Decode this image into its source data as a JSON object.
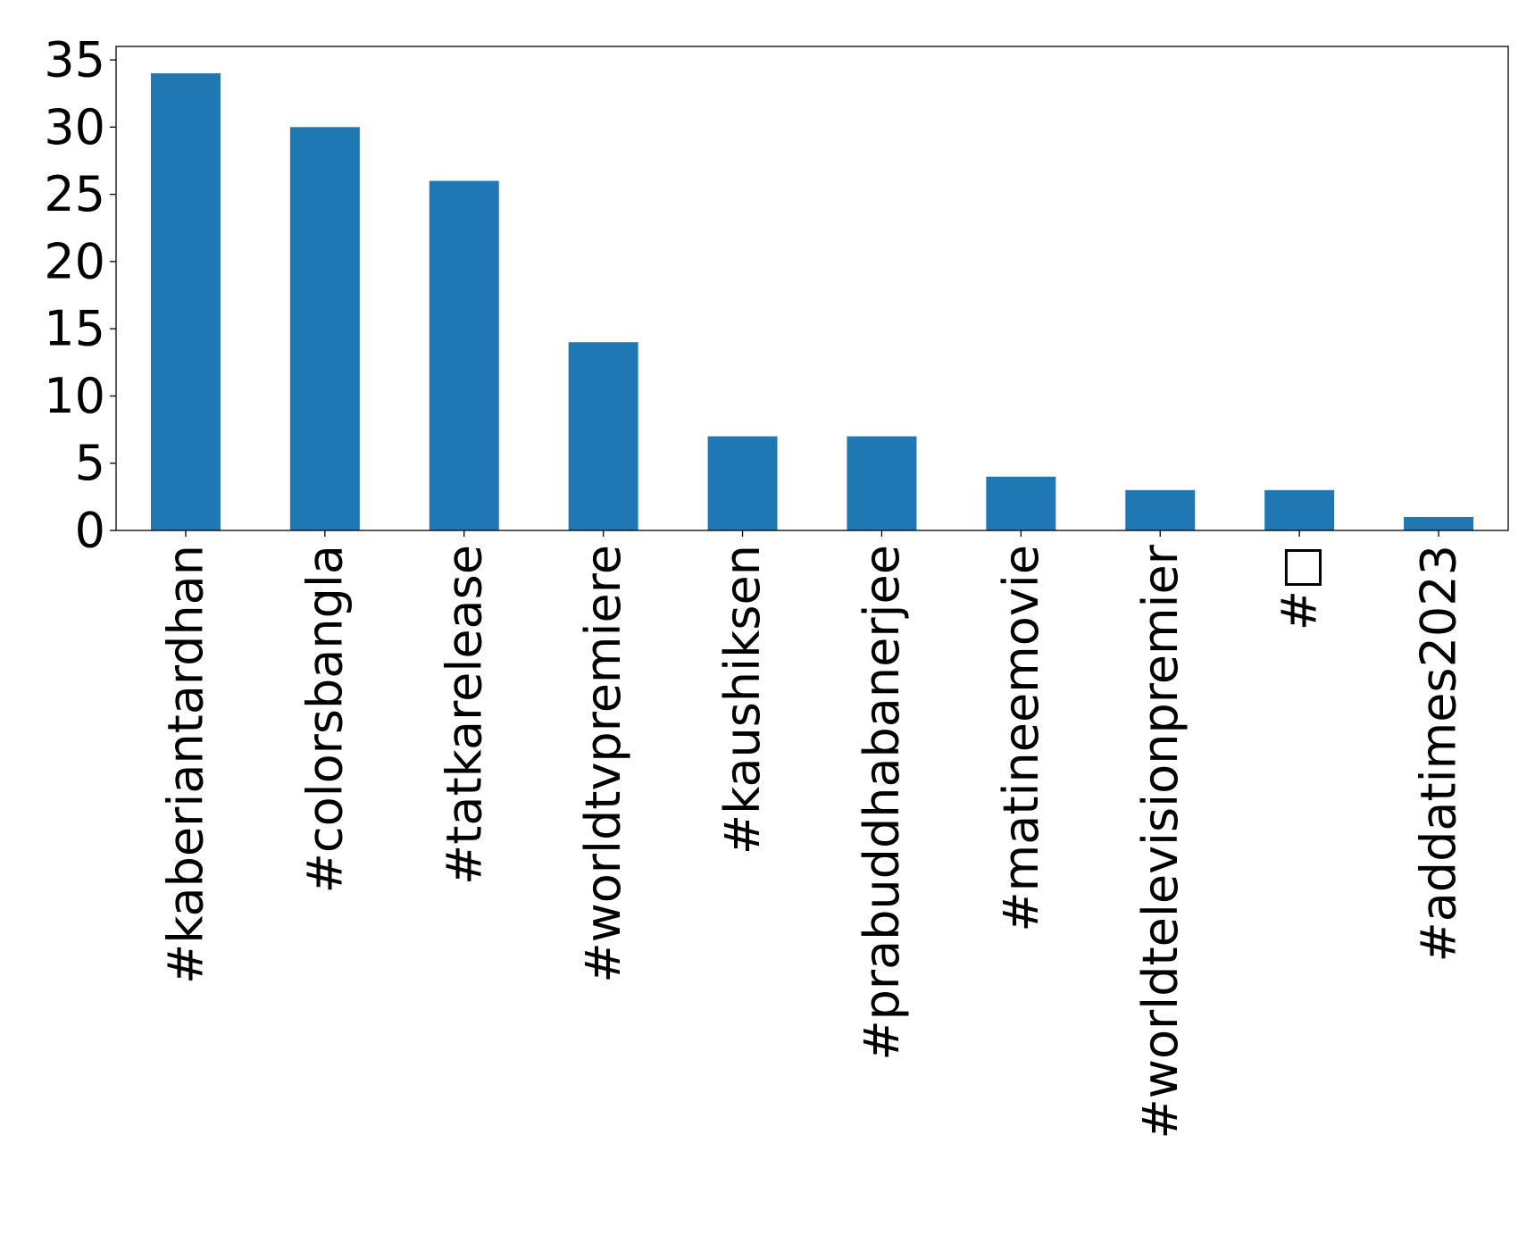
{
  "chart_data": {
    "type": "bar",
    "title": "",
    "xlabel": "",
    "ylabel": "",
    "categories": [
      "#kaberiantardhan",
      "#colorsbangla",
      "#tatkarelease",
      "#worldtvpremiere",
      "#kaushiksen",
      "#prabuddhabanerjee",
      "#matineemovie",
      "#worldtelevisionpremier",
      "#□",
      "#addatimes2023"
    ],
    "values": [
      34,
      30,
      26,
      14,
      7,
      7,
      4,
      3,
      3,
      1
    ],
    "ylim": [
      0,
      36
    ],
    "yticks": [
      "0",
      "5",
      "10",
      "15",
      "20",
      "25",
      "30",
      "35"
    ],
    "grid": false,
    "legend": "none",
    "colors": {
      "bar": "#1f77b4",
      "axis": "#000000",
      "background": "#ffffff"
    }
  }
}
